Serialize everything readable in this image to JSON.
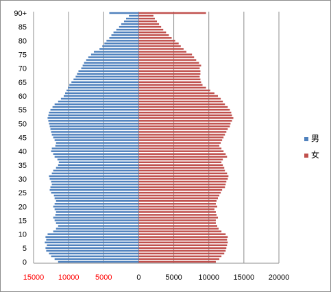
{
  "chart_data": {
    "type": "bar",
    "orientation": "horizontal",
    "title": "",
    "xlabel": "",
    "ylabel": "",
    "age_tick_labels": [
      "0",
      "5",
      "10",
      "15",
      "20",
      "25",
      "30",
      "35",
      "40",
      "45",
      "50",
      "55",
      "60",
      "65",
      "70",
      "75",
      "80",
      "85",
      "90+"
    ],
    "x_tick_labels": [
      "15000",
      "10000",
      "5000",
      "0",
      "5000",
      "10000",
      "15000",
      "20000"
    ],
    "xlim": [
      -15000,
      20000
    ],
    "grid": true,
    "legend": "right",
    "colors": {
      "male": "#4f81bd",
      "female": "#c0504d",
      "negative_tick": "#ff0000",
      "positive_tick": "#000000"
    },
    "series": [
      {
        "name": "男",
        "side": "left",
        "values": [
          11500,
          12000,
          12500,
          12800,
          13200,
          13300,
          13100,
          13400,
          13200,
          13300,
          13000,
          12200,
          11800,
          11500,
          11800,
          12000,
          12200,
          11900,
          11800,
          12000,
          12200,
          12000,
          11800,
          12000,
          12100,
          12500,
          12700,
          12600,
          12400,
          12500,
          12700,
          12800,
          12400,
          12200,
          11800,
          11500,
          11400,
          11600,
          12000,
          12200,
          12500,
          12400,
          11900,
          11800,
          12000,
          12200,
          12400,
          12500,
          12600,
          12700,
          12800,
          12900,
          13000,
          12900,
          12800,
          12600,
          12300,
          12000,
          11500,
          11100,
          10700,
          10500,
          10300,
          10100,
          9900,
          9600,
          9300,
          9000,
          8800,
          8600,
          8200,
          8000,
          7800,
          7500,
          7200,
          6800,
          6400,
          5600,
          5200,
          4900,
          4600,
          4200,
          3900,
          3600,
          3200,
          2800,
          2500,
          2100,
          1800,
          1400,
          4200
        ]
      },
      {
        "name": "女",
        "side": "right",
        "values": [
          11000,
          11500,
          11800,
          12200,
          12400,
          12500,
          12600,
          12700,
          12600,
          12700,
          12400,
          11800,
          11400,
          11200,
          11000,
          11000,
          11300,
          11100,
          11000,
          10800,
          11200,
          11000,
          11100,
          11300,
          11500,
          11700,
          11900,
          12300,
          12400,
          12500,
          12700,
          12800,
          12600,
          12300,
          12200,
          12000,
          11800,
          12000,
          12600,
          12400,
          12100,
          11800,
          11500,
          11700,
          11900,
          12100,
          12300,
          12500,
          12700,
          13000,
          13100,
          13300,
          13500,
          13300,
          13200,
          13000,
          12700,
          12300,
          12000,
          11700,
          11300,
          10800,
          10200,
          9600,
          9100,
          8900,
          8800,
          8700,
          8800,
          8800,
          8700,
          8900,
          8600,
          8200,
          7900,
          7600,
          6800,
          6400,
          6000,
          5700,
          5200,
          4700,
          4300,
          3900,
          3500,
          3200,
          2900,
          2600,
          2300,
          2100,
          9600
        ]
      }
    ]
  }
}
